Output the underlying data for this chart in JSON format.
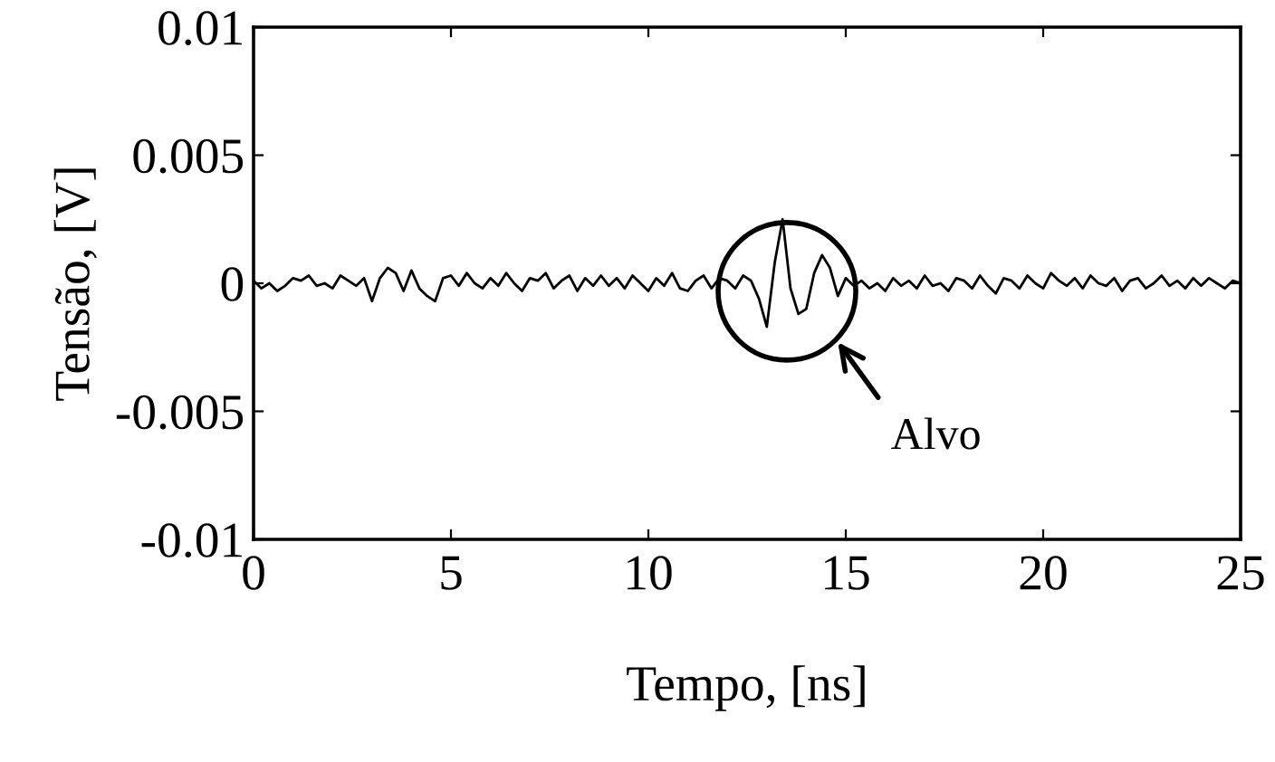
{
  "chart_data": {
    "type": "line",
    "xlabel": "Tempo, [ns]",
    "ylabel": "Tensão, [V]",
    "xlim": [
      0,
      25
    ],
    "xticks": [
      0,
      5,
      10,
      15,
      20,
      25
    ],
    "ylim": [
      -0.01,
      0.01
    ],
    "yticks": [
      -0.01,
      -0.005,
      0,
      0.005,
      0.01
    ],
    "grid": false,
    "legend": false,
    "annotations": [
      "Alvo"
    ],
    "series": [
      {
        "color": "#000000",
        "x": [
          0,
          0.2,
          0.4,
          0.6,
          0.8,
          1,
          1.2,
          1.4,
          1.6,
          1.8,
          2,
          2.2,
          2.4,
          2.6,
          2.8,
          3,
          3.2,
          3.4,
          3.6,
          3.8,
          4,
          4.2,
          4.4,
          4.6,
          4.8,
          5,
          5.2,
          5.4,
          5.6,
          5.8,
          6,
          6.2,
          6.4,
          6.6,
          6.8,
          7,
          7.2,
          7.4,
          7.6,
          7.8,
          8,
          8.2,
          8.4,
          8.6,
          8.8,
          9,
          9.2,
          9.4,
          9.6,
          9.8,
          10,
          10.2,
          10.4,
          10.6,
          10.8,
          11,
          11.2,
          11.4,
          11.6,
          11.8,
          12,
          12.2,
          12.4,
          12.6,
          12.8,
          13,
          13.2,
          13.4,
          13.6,
          13.8,
          14,
          14.2,
          14.4,
          14.6,
          14.8,
          15,
          15.2,
          15.4,
          15.6,
          15.8,
          16,
          16.2,
          16.4,
          16.6,
          16.8,
          17,
          17.2,
          17.4,
          17.6,
          17.8,
          18,
          18.2,
          18.4,
          18.6,
          18.8,
          19,
          19.2,
          19.4,
          19.6,
          19.8,
          20,
          20.2,
          20.4,
          20.6,
          20.8,
          21,
          21.2,
          21.4,
          21.6,
          21.8,
          22,
          22.2,
          22.4,
          22.6,
          22.8,
          23,
          23.2,
          23.4,
          23.6,
          23.8,
          24,
          24.2,
          24.4,
          24.6,
          24.8,
          25
        ],
        "values": [
          0.0001,
          -0.0002,
          0.0,
          -0.0003,
          -0.0001,
          0.0002,
          0.0001,
          0.0003,
          -0.0001,
          0.0,
          -0.0002,
          0.0003,
          0.0001,
          -0.0001,
          0.0002,
          -0.0007,
          0.0002,
          0.0006,
          0.0004,
          -0.0003,
          0.0005,
          -0.0002,
          -0.0005,
          -0.0007,
          0.0002,
          0.0003,
          -0.0001,
          0.0004,
          0.0,
          -0.0002,
          0.0002,
          -0.0001,
          0.0004,
          0.0,
          -0.0003,
          0.0002,
          0.0001,
          0.0004,
          -0.0002,
          0.0001,
          0.0003,
          -0.0003,
          0.0002,
          -0.0001,
          0.0003,
          -0.0001,
          0.0002,
          -0.0002,
          0.0003,
          0.0,
          -0.0003,
          0.0002,
          -0.0001,
          0.0004,
          -0.0002,
          -0.0003,
          0.0001,
          0.0003,
          -0.0002,
          0.0002,
          0.0001,
          -0.0002,
          0.0003,
          0.0001,
          -0.0006,
          -0.0017,
          0.0008,
          0.0025,
          -0.0002,
          -0.0012,
          -0.001,
          0.0004,
          0.0011,
          0.0006,
          -0.0005,
          0.0002,
          -0.0001,
          0.0001,
          -0.0002,
          0.0,
          -0.0003,
          0.0002,
          -0.0001,
          0.0001,
          -0.0002,
          0.0003,
          -0.0001,
          0.0,
          -0.0003,
          0.0002,
          0.0001,
          -0.0002,
          0.0003,
          -0.0001,
          -0.0004,
          0.0002,
          0.0001,
          -0.0002,
          0.0003,
          0.0,
          -0.0002,
          0.0004,
          0.0001,
          -0.0001,
          0.0002,
          -0.0002,
          0.0003,
          0.0,
          -0.0001,
          0.0002,
          -0.0003,
          0.0001,
          0.0002,
          -0.0002,
          0.0,
          0.0003,
          -0.0001,
          0.0001,
          -0.0002,
          0.0002,
          -0.0001,
          0.0002,
          0.0,
          -0.0002,
          0.0001,
          0.0
        ]
      }
    ]
  }
}
